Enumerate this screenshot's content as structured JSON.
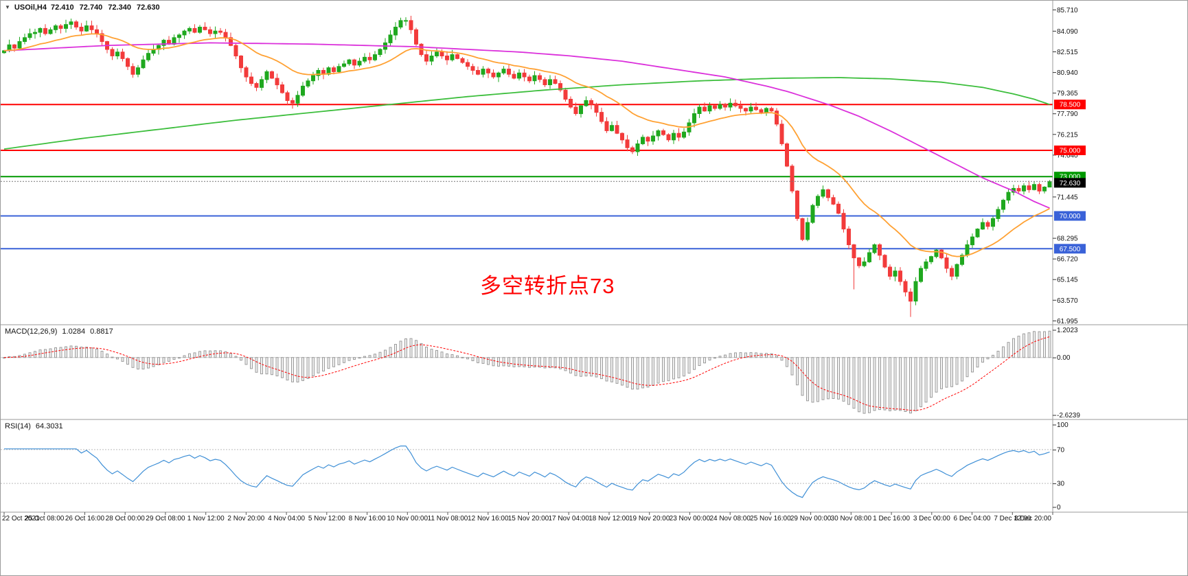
{
  "header": {
    "symbol": "USOil,H4",
    "open": "72.410",
    "high": "72.740",
    "low": "72.340",
    "close": "72.630"
  },
  "annotation": {
    "text": "多空转折点73",
    "color": "#FF0000"
  },
  "indicators": {
    "macd": {
      "name": "MACD(12,26,9)",
      "value_main": "1.0284",
      "value_signal": "0.8817"
    },
    "rsi": {
      "name": "RSI(14)",
      "value": "64.3031"
    }
  },
  "colors": {
    "candle_up": "#1FA81F",
    "candle_down": "#F23B3B",
    "ma_green": "#3CBE3C",
    "ma_magenta": "#DB30DB",
    "ma_orange": "#FFA133",
    "hline_red": "#FF0000",
    "hline_green": "#009900",
    "hline_blue": "#3A62D8",
    "current_badge": "#000000",
    "macd_signal": "#FF0000",
    "macd_bar_fill": "#F0F0F0",
    "macd_bar_stroke": "#9C9C9C",
    "rsi_line": "#3E8FD6",
    "axis_text": "#111111",
    "separator": "#9A9A9A"
  },
  "chart_data": {
    "type": "candlestick",
    "title": "USOil H4 chart with MACD and RSI",
    "symbol": "USOil",
    "timeframe": "H4",
    "x_labels": [
      "22 Oct 2021",
      "25 Oct 08:00",
      "26 Oct 16:00",
      "28 Oct 00:00",
      "29 Oct 08:00",
      "1 Nov 12:00",
      "2 Nov 20:00",
      "4 Nov 04:00",
      "5 Nov 12:00",
      "8 Nov 16:00",
      "10 Nov 00:00",
      "11 Nov 08:00",
      "12 Nov 16:00",
      "15 Nov 20:00",
      "17 Nov 04:00",
      "18 Nov 12:00",
      "19 Nov 20:00",
      "23 Nov 00:00",
      "24 Nov 08:00",
      "25 Nov 16:00",
      "29 Nov 00:00",
      "30 Nov 08:00",
      "1 Dec 16:00",
      "3 Dec 00:00",
      "6 Dec 04:00",
      "7 Dec 12:00",
      "8 Dec 20:00"
    ],
    "price_axis_labels": [
      "85.710",
      "84.090",
      "82.515",
      "80.940",
      "79.365",
      "77.790",
      "76.215",
      "74.640",
      "71.445",
      "68.295",
      "66.720",
      "65.145",
      "63.570",
      "61.995"
    ],
    "candles": {
      "first_open": 82.45,
      "closes": [
        82.6,
        83.05,
        82.8,
        83.3,
        83.6,
        83.9,
        84.0,
        84.3,
        83.9,
        84.2,
        84.5,
        84.3,
        84.6,
        84.8,
        84.4,
        84.1,
        84.5,
        84.2,
        83.9,
        83.3,
        82.7,
        82.2,
        82.5,
        82.0,
        81.4,
        80.8,
        81.3,
        81.9,
        82.4,
        82.7,
        83.0,
        83.4,
        83.1,
        83.6,
        83.8,
        84.1,
        84.3,
        84.0,
        84.4,
        84.2,
        83.9,
        84.1,
        84.0,
        83.6,
        83.0,
        82.2,
        81.3,
        80.6,
        80.1,
        79.8,
        80.4,
        81.0,
        80.5,
        80.0,
        79.4,
        78.8,
        78.6,
        79.2,
        79.9,
        80.3,
        80.7,
        81.1,
        80.8,
        81.3,
        81.0,
        81.4,
        81.6,
        81.9,
        81.5,
        81.8,
        82.1,
        81.9,
        82.3,
        82.7,
        83.2,
        83.8,
        84.4,
        84.9,
        84.9,
        84.2,
        83.1,
        82.3,
        81.8,
        82.2,
        82.5,
        82.2,
        81.9,
        82.3,
        82.0,
        81.7,
        81.4,
        81.1,
        80.8,
        81.2,
        80.9,
        80.6,
        80.9,
        81.2,
        80.8,
        80.5,
        80.9,
        80.6,
        80.3,
        80.7,
        80.4,
        80.0,
        80.4,
        80.1,
        79.6,
        78.9,
        78.3,
        77.8,
        78.4,
        78.8,
        78.5,
        77.9,
        77.2,
        76.5,
        76.9,
        76.3,
        75.8,
        75.2,
        74.9,
        75.5,
        76.0,
        75.7,
        76.1,
        76.5,
        76.2,
        75.8,
        76.3,
        76.0,
        76.4,
        77.1,
        77.8,
        78.3,
        78.0,
        78.4,
        78.2,
        78.5,
        78.3,
        78.6,
        78.4,
        78.2,
        78.0,
        78.3,
        78.1,
        77.9,
        78.2,
        78.0,
        77.0,
        75.5,
        73.8,
        71.9,
        69.8,
        68.2,
        69.5,
        70.8,
        71.5,
        72.0,
        71.4,
        70.9,
        70.2,
        69.0,
        67.8,
        66.8,
        66.2,
        66.5,
        67.2,
        67.8,
        67.0,
        66.1,
        65.4,
        65.8,
        65.0,
        64.2,
        63.5,
        65.0,
        66.0,
        66.5,
        66.9,
        67.4,
        66.8,
        66.0,
        65.4,
        66.3,
        67.0,
        67.8,
        68.4,
        69.0,
        69.5,
        69.2,
        69.8,
        70.5,
        71.2,
        71.8,
        72.1,
        71.9,
        72.3,
        72.0,
        72.4,
        71.9,
        72.2,
        72.63
      ],
      "wick_overrides": {
        "13": {
          "high": 85.05
        },
        "56": {
          "low": 78.18
        },
        "78": {
          "high": 85.15
        },
        "122": {
          "low": 74.72
        },
        "165": {
          "low": 64.4
        },
        "176": {
          "low": 62.3
        },
        "184": {
          "low": 65.1
        },
        "203": {
          "high": 72.74,
          "low": 72.34
        }
      }
    },
    "moving_averages": {
      "green_slow": {
        "points": [
          [
            0,
            75.1
          ],
          [
            15,
            75.9
          ],
          [
            30,
            76.6
          ],
          [
            45,
            77.3
          ],
          [
            60,
            77.9
          ],
          [
            75,
            78.5
          ],
          [
            90,
            79.1
          ],
          [
            105,
            79.6
          ],
          [
            120,
            80.0
          ],
          [
            135,
            80.3
          ],
          [
            150,
            80.5
          ],
          [
            162,
            80.55
          ],
          [
            172,
            80.45
          ],
          [
            182,
            80.2
          ],
          [
            190,
            79.8
          ],
          [
            196,
            79.3
          ],
          [
            200,
            78.9
          ],
          [
            203,
            78.5
          ]
        ]
      },
      "magenta_mid": {
        "points": [
          [
            0,
            82.6
          ],
          [
            20,
            83.0
          ],
          [
            40,
            83.2
          ],
          [
            60,
            83.1
          ],
          [
            80,
            82.9
          ],
          [
            90,
            82.7
          ],
          [
            100,
            82.5
          ],
          [
            110,
            82.2
          ],
          [
            120,
            81.8
          ],
          [
            130,
            81.2
          ],
          [
            140,
            80.6
          ],
          [
            148,
            79.9
          ],
          [
            152,
            79.5
          ],
          [
            156,
            79.0
          ],
          [
            160,
            78.5
          ],
          [
            166,
            77.6
          ],
          [
            172,
            76.5
          ],
          [
            178,
            75.3
          ],
          [
            184,
            74.1
          ],
          [
            190,
            72.9
          ],
          [
            196,
            71.9
          ],
          [
            200,
            71.1
          ],
          [
            203,
            70.6
          ]
        ]
      },
      "orange_fast": {
        "ema_period": 21
      }
    },
    "hlines": [
      {
        "price": 78.5,
        "label": "78.500",
        "color_key": "hline_red"
      },
      {
        "price": 75.0,
        "label": "75.000",
        "color_key": "hline_red"
      },
      {
        "price": 73.0,
        "label": "73.000",
        "color_key": "hline_green"
      },
      {
        "price": 70.0,
        "label": "70.000",
        "color_key": "hline_blue"
      },
      {
        "price": 67.5,
        "label": "67.500",
        "color_key": "hline_blue"
      }
    ],
    "current_price": {
      "value": 72.63,
      "label": "72.630"
    },
    "macd": {
      "fast": 12,
      "slow": 26,
      "signal": 9,
      "axis_labels": [
        "1.2023",
        "0.00",
        "-2.6239"
      ]
    },
    "rsi": {
      "period": 14,
      "levels": [
        70,
        30
      ],
      "axis_labels": [
        "100",
        "70",
        "30",
        "0"
      ]
    },
    "ylim": [
      61.995,
      85.71
    ],
    "grid": "off",
    "legend": "none"
  }
}
